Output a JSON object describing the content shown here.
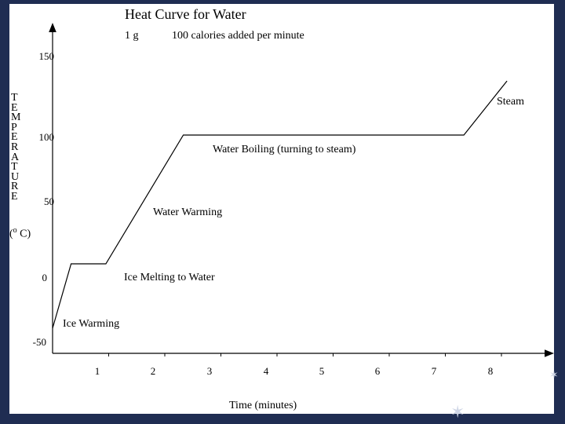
{
  "chart_data": {
    "type": "line",
    "title": "Heat Curve for Water",
    "subtitle_mass": "1 g",
    "subtitle_rate": "100 calories added per minute",
    "ylabel": "TEMPERATURE",
    "yunit": "(o C)",
    "xlabel": "Time (minutes)",
    "xlim": [
      0,
      8.9
    ],
    "ylim": [
      -50,
      160
    ],
    "yticks": [
      "150",
      "100",
      "50",
      "0",
      "-50"
    ],
    "xticks": [
      "1",
      "2",
      "3",
      "4",
      "5",
      "6",
      "7",
      "8"
    ],
    "series": [
      {
        "x": [
          0,
          0.33,
          0.95,
          2.33,
          7.33,
          8.1
        ],
        "y": [
          -50,
          0,
          0,
          100,
          100,
          142
        ]
      }
    ],
    "annotations": [
      "Ice Warming",
      "Ice Melting to Water",
      "Water Warming",
      "Water Boiling (turning to steam)",
      "Steam"
    ],
    "grid": false
  }
}
